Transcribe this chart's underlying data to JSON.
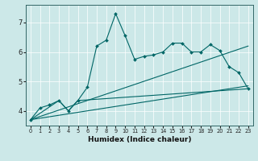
{
  "xlabel": "Humidex (Indice chaleur)",
  "bg_color": "#cce8e8",
  "line_color": "#006666",
  "x_ticks": [
    0,
    1,
    2,
    3,
    4,
    5,
    6,
    7,
    8,
    9,
    10,
    11,
    12,
    13,
    14,
    15,
    16,
    17,
    18,
    19,
    20,
    21,
    22,
    23
  ],
  "ylim": [
    3.5,
    7.6
  ],
  "xlim": [
    -0.5,
    23.5
  ],
  "series": [
    [
      0,
      3.7
    ],
    [
      1,
      4.1
    ],
    [
      2,
      4.2
    ],
    [
      3,
      4.35
    ],
    [
      4,
      4.0
    ],
    [
      5,
      4.35
    ],
    [
      6,
      4.8
    ],
    [
      7,
      6.2
    ],
    [
      8,
      6.4
    ],
    [
      9,
      7.3
    ],
    [
      10,
      6.55
    ],
    [
      11,
      5.75
    ],
    [
      12,
      5.85
    ],
    [
      13,
      5.9
    ],
    [
      14,
      6.0
    ],
    [
      15,
      6.3
    ],
    [
      16,
      6.3
    ],
    [
      17,
      6.0
    ],
    [
      18,
      6.0
    ],
    [
      19,
      6.25
    ],
    [
      20,
      6.05
    ],
    [
      21,
      5.5
    ],
    [
      22,
      5.3
    ],
    [
      23,
      4.75
    ]
  ],
  "line2": [
    [
      0,
      3.7
    ],
    [
      3,
      4.35
    ],
    [
      4,
      4.0
    ],
    [
      5,
      4.35
    ],
    [
      23,
      4.75
    ]
  ],
  "line3": [
    [
      0,
      3.7
    ],
    [
      23,
      6.2
    ]
  ],
  "line4": [
    [
      0,
      3.7
    ],
    [
      23,
      4.85
    ]
  ],
  "yticks": [
    4,
    5,
    6,
    7
  ]
}
